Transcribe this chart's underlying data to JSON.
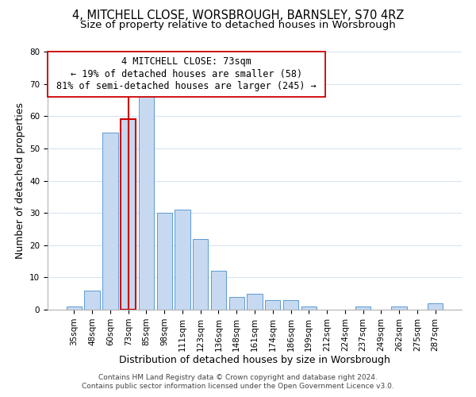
{
  "title": "4, MITCHELL CLOSE, WORSBROUGH, BARNSLEY, S70 4RZ",
  "subtitle": "Size of property relative to detached houses in Worsbrough",
  "xlabel": "Distribution of detached houses by size in Worsbrough",
  "ylabel": "Number of detached properties",
  "footer_line1": "Contains HM Land Registry data © Crown copyright and database right 2024.",
  "footer_line2": "Contains public sector information licensed under the Open Government Licence v3.0.",
  "bar_labels": [
    "35sqm",
    "48sqm",
    "60sqm",
    "73sqm",
    "85sqm",
    "98sqm",
    "111sqm",
    "123sqm",
    "136sqm",
    "148sqm",
    "161sqm",
    "174sqm",
    "186sqm",
    "199sqm",
    "212sqm",
    "224sqm",
    "237sqm",
    "249sqm",
    "262sqm",
    "275sqm",
    "287sqm"
  ],
  "bar_values": [
    1,
    6,
    55,
    59,
    67,
    30,
    31,
    22,
    12,
    4,
    5,
    3,
    3,
    1,
    0,
    0,
    1,
    0,
    1,
    0,
    2
  ],
  "bar_color": "#c6d9f0",
  "bar_edgecolor": "#5b9bd5",
  "highlight_bar_index": 3,
  "highlight_bar_edgecolor": "#cc0000",
  "vline_color": "#cc0000",
  "ylim": [
    0,
    80
  ],
  "yticks": [
    0,
    10,
    20,
    30,
    40,
    50,
    60,
    70,
    80
  ],
  "annotation_title": "4 MITCHELL CLOSE: 73sqm",
  "annotation_line1": "← 19% of detached houses are smaller (58)",
  "annotation_line2": "81% of semi-detached houses are larger (245) →",
  "background_color": "#ffffff",
  "grid_color": "#d8e4f0",
  "title_fontsize": 10.5,
  "subtitle_fontsize": 9.5,
  "axis_label_fontsize": 9,
  "tick_fontsize": 7.5,
  "footer_fontsize": 6.5
}
